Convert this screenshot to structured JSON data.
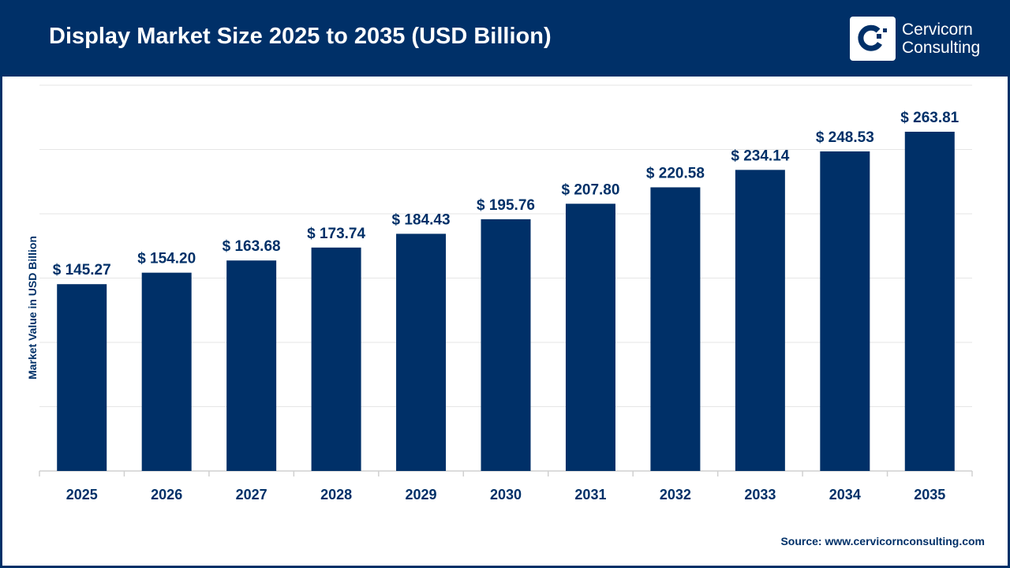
{
  "header": {
    "title": "Display Market Size 2025 to 2035 (USD Billion)",
    "logo_text": [
      "Cervicorn",
      "Consulting"
    ]
  },
  "source": "Source: www.cervicornconsulting.com",
  "colors": {
    "bar": "#003068",
    "header": "#003068",
    "grid": "#e6e6e6"
  },
  "chart_data": {
    "type": "bar",
    "title": "Display Market Size 2025 to 2035 (USD Billion)",
    "xlabel": "",
    "ylabel": "Market Value in USD Billion",
    "ylim": [
      0,
      300
    ],
    "grid": true,
    "categories": [
      "2025",
      "2026",
      "2027",
      "2028",
      "2029",
      "2030",
      "2031",
      "2032",
      "2033",
      "2034",
      "2035"
    ],
    "values": [
      145.27,
      154.2,
      163.68,
      173.74,
      184.43,
      195.76,
      207.8,
      220.58,
      234.14,
      248.53,
      263.81
    ],
    "data_labels": [
      "$ 145.27",
      "$ 154.20",
      "$ 163.68",
      "$ 173.74",
      "$ 184.43",
      "$ 195.76",
      "$ 207.80",
      "$ 220.58",
      "$ 234.14",
      "$ 248.53",
      "$ 263.81"
    ]
  }
}
